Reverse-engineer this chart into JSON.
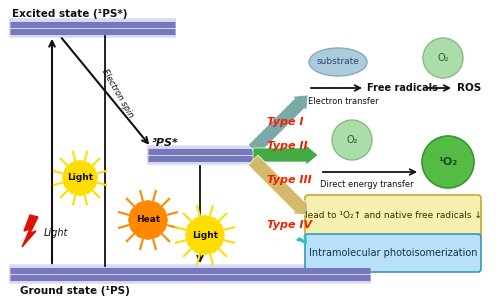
{
  "bg_color": "#ffffff",
  "excited_state_label": "Excited state (¹PS*)",
  "ground_state_label": "Ground state (¹PS)",
  "triplet_label": "³PS*",
  "electron_spin_label": "Electron spin",
  "type1_label": "Type I",
  "type2_label": "Type II",
  "type3_label": "Type III",
  "type4_label": "Type IV",
  "substrate_label": "substrate",
  "electron_transfer_label": "Electron transfer",
  "free_radicals_label": "Free radicals",
  "ros_label": "ROS",
  "direct_energy_label": "Direct energy transfer",
  "singlet_o2_label": "¹O₂",
  "o2_label": "O₂",
  "type3_box_label": "lead to ¹O₂↑ and native free radicals ↓",
  "type4_box_label": "Intramolecular photoisomerization",
  "light_label": "Light",
  "heat_label": "Heat",
  "bar_color": "#7777bb",
  "bar_bg_color": "#aaaaee",
  "type1_arrow_color": "#7aaaa8",
  "type2_arrow_color": "#44aa44",
  "type3_arrow_color": "#d4b96a",
  "type4_arrow_color": "#33bbcc",
  "type_label_color": "#ee2200",
  "type3_box_fill": "#f5f0b0",
  "type3_box_edge": "#c8a830",
  "type4_box_fill": "#b8e0f8",
  "type4_box_edge": "#3399bb",
  "substrate_fill": "#aaccdd",
  "o2_light_fill": "#aaddaa",
  "o2_dark_fill": "#55bb44",
  "light_sun_color": "#ffdd00",
  "heat_sun_color": "#ff8800",
  "lightning_color": "#dd1100",
  "black": "#111111"
}
